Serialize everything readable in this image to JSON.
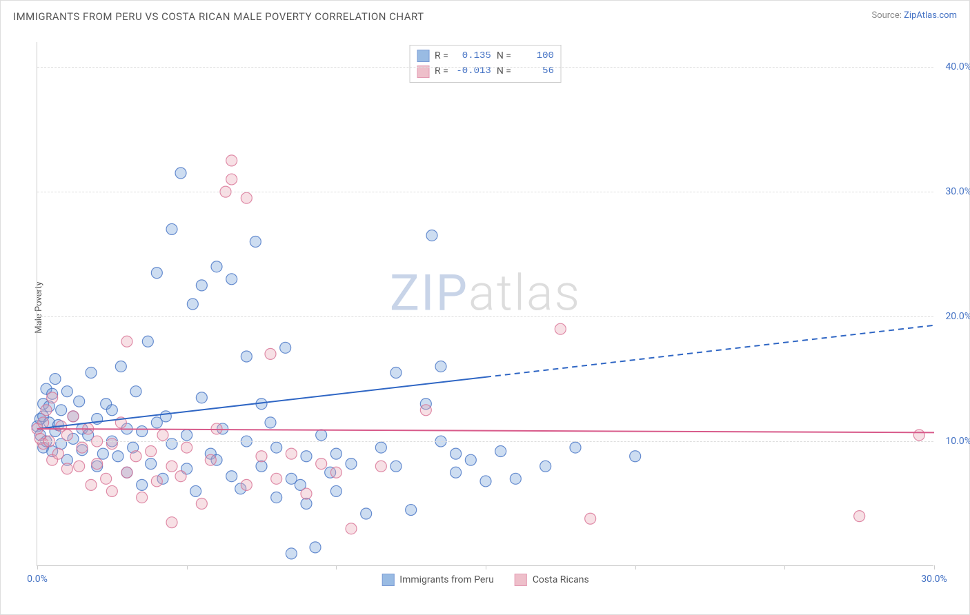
{
  "title": "IMMIGRANTS FROM PERU VS COSTA RICAN MALE POVERTY CORRELATION CHART",
  "source_label": "Source: ",
  "source_link": "ZipAtlas.com",
  "y_axis_label": "Male Poverty",
  "watermark_a": "ZIP",
  "watermark_b": "atlas",
  "chart": {
    "type": "scatter",
    "xlim": [
      0,
      30
    ],
    "ylim": [
      0,
      42
    ],
    "x_ticks": [
      0,
      5,
      10,
      15,
      20,
      25,
      30
    ],
    "x_tick_labels": [
      "0.0%",
      "",
      "",
      "",
      "",
      "",
      "30.0%"
    ],
    "y_ticks": [
      10,
      20,
      30,
      40
    ],
    "y_tick_labels": [
      "10.0%",
      "20.0%",
      "30.0%",
      "40.0%"
    ],
    "background_color": "#ffffff",
    "grid_color": "#dddddd",
    "marker_radius": 8,
    "marker_fill_opacity": 0.35,
    "marker_stroke_width": 1.2,
    "series": [
      {
        "name": "Immigrants from Peru",
        "color": "#6f9fd8",
        "stroke": "#4472c4",
        "R": "0.135",
        "N": "100",
        "trend": {
          "x1": 0,
          "y1": 11.0,
          "x2": 15,
          "y2": 15.2,
          "x3": 30,
          "y3": 19.3,
          "solid_until_x": 15,
          "color": "#2f66c4",
          "width": 2
        },
        "points": [
          [
            0.0,
            11.2
          ],
          [
            0.1,
            10.5
          ],
          [
            0.1,
            11.8
          ],
          [
            0.2,
            12.0
          ],
          [
            0.2,
            9.5
          ],
          [
            0.2,
            13.0
          ],
          [
            0.3,
            14.2
          ],
          [
            0.3,
            10.0
          ],
          [
            0.4,
            11.5
          ],
          [
            0.4,
            12.8
          ],
          [
            0.5,
            9.2
          ],
          [
            0.5,
            13.8
          ],
          [
            0.6,
            15.0
          ],
          [
            0.6,
            10.8
          ],
          [
            0.7,
            11.3
          ],
          [
            0.8,
            12.5
          ],
          [
            0.8,
            9.8
          ],
          [
            1.0,
            14.0
          ],
          [
            1.0,
            8.5
          ],
          [
            1.2,
            10.2
          ],
          [
            1.2,
            12.0
          ],
          [
            1.4,
            13.2
          ],
          [
            1.5,
            9.3
          ],
          [
            1.5,
            11.0
          ],
          [
            1.7,
            10.5
          ],
          [
            1.8,
            15.5
          ],
          [
            2.0,
            8.0
          ],
          [
            2.0,
            11.8
          ],
          [
            2.2,
            9.0
          ],
          [
            2.3,
            13.0
          ],
          [
            2.5,
            10.0
          ],
          [
            2.5,
            12.5
          ],
          [
            2.7,
            8.8
          ],
          [
            2.8,
            16.0
          ],
          [
            3.0,
            11.0
          ],
          [
            3.0,
            7.5
          ],
          [
            3.2,
            9.5
          ],
          [
            3.3,
            14.0
          ],
          [
            3.5,
            10.8
          ],
          [
            3.5,
            6.5
          ],
          [
            3.7,
            18.0
          ],
          [
            3.8,
            8.2
          ],
          [
            4.0,
            11.5
          ],
          [
            4.0,
            23.5
          ],
          [
            4.2,
            7.0
          ],
          [
            4.3,
            12.0
          ],
          [
            4.5,
            9.8
          ],
          [
            4.5,
            27.0
          ],
          [
            4.8,
            31.5
          ],
          [
            5.0,
            10.5
          ],
          [
            5.0,
            7.8
          ],
          [
            5.2,
            21.0
          ],
          [
            5.3,
            6.0
          ],
          [
            5.5,
            13.5
          ],
          [
            5.5,
            22.5
          ],
          [
            5.8,
            9.0
          ],
          [
            6.0,
            8.5
          ],
          [
            6.0,
            24.0
          ],
          [
            6.2,
            11.0
          ],
          [
            6.5,
            7.2
          ],
          [
            6.5,
            23.0
          ],
          [
            6.8,
            6.2
          ],
          [
            7.0,
            16.8
          ],
          [
            7.0,
            10.0
          ],
          [
            7.3,
            26.0
          ],
          [
            7.5,
            8.0
          ],
          [
            7.5,
            13.0
          ],
          [
            7.8,
            11.5
          ],
          [
            8.0,
            5.5
          ],
          [
            8.0,
            9.5
          ],
          [
            8.3,
            17.5
          ],
          [
            8.5,
            7.0
          ],
          [
            8.5,
            1.0
          ],
          [
            8.8,
            6.5
          ],
          [
            9.0,
            8.8
          ],
          [
            9.0,
            5.0
          ],
          [
            9.3,
            1.5
          ],
          [
            9.5,
            10.5
          ],
          [
            9.8,
            7.5
          ],
          [
            10.0,
            9.0
          ],
          [
            10.0,
            6.0
          ],
          [
            10.5,
            8.2
          ],
          [
            11.0,
            4.2
          ],
          [
            11.5,
            9.5
          ],
          [
            12.0,
            15.5
          ],
          [
            12.0,
            8.0
          ],
          [
            12.5,
            4.5
          ],
          [
            13.0,
            13.0
          ],
          [
            13.2,
            26.5
          ],
          [
            13.5,
            10.0
          ],
          [
            13.5,
            16.0
          ],
          [
            14.0,
            9.0
          ],
          [
            14.0,
            7.5
          ],
          [
            14.5,
            8.5
          ],
          [
            15.0,
            6.8
          ],
          [
            15.5,
            9.2
          ],
          [
            16.0,
            7.0
          ],
          [
            17.0,
            8.0
          ],
          [
            18.0,
            9.5
          ],
          [
            20.0,
            8.8
          ]
        ]
      },
      {
        "name": "Costa Ricans",
        "color": "#e8a5b5",
        "stroke": "#d87093",
        "R": "-0.013",
        "N": "56",
        "trend": {
          "x1": 0,
          "y1": 11.0,
          "x2": 30,
          "y2": 10.7,
          "solid_until_x": 30,
          "color": "#d85a8a",
          "width": 2
        },
        "points": [
          [
            0.0,
            11.0
          ],
          [
            0.1,
            10.2
          ],
          [
            0.2,
            11.5
          ],
          [
            0.2,
            9.8
          ],
          [
            0.3,
            12.5
          ],
          [
            0.4,
            10.0
          ],
          [
            0.5,
            8.5
          ],
          [
            0.5,
            13.5
          ],
          [
            0.7,
            9.0
          ],
          [
            0.8,
            11.2
          ],
          [
            1.0,
            10.5
          ],
          [
            1.0,
            7.8
          ],
          [
            1.2,
            12.0
          ],
          [
            1.4,
            8.0
          ],
          [
            1.5,
            9.5
          ],
          [
            1.7,
            11.0
          ],
          [
            1.8,
            6.5
          ],
          [
            2.0,
            10.0
          ],
          [
            2.0,
            8.2
          ],
          [
            2.3,
            7.0
          ],
          [
            2.5,
            9.8
          ],
          [
            2.5,
            6.0
          ],
          [
            2.8,
            11.5
          ],
          [
            3.0,
            7.5
          ],
          [
            3.0,
            18.0
          ],
          [
            3.3,
            8.8
          ],
          [
            3.5,
            5.5
          ],
          [
            3.8,
            9.2
          ],
          [
            4.0,
            6.8
          ],
          [
            4.2,
            10.5
          ],
          [
            4.5,
            8.0
          ],
          [
            4.5,
            3.5
          ],
          [
            4.8,
            7.2
          ],
          [
            5.0,
            9.5
          ],
          [
            5.5,
            5.0
          ],
          [
            5.8,
            8.5
          ],
          [
            6.0,
            11.0
          ],
          [
            6.3,
            30.0
          ],
          [
            6.5,
            32.5
          ],
          [
            6.5,
            31.0
          ],
          [
            7.0,
            6.5
          ],
          [
            7.0,
            29.5
          ],
          [
            7.5,
            8.8
          ],
          [
            7.8,
            17.0
          ],
          [
            8.0,
            7.0
          ],
          [
            8.5,
            9.0
          ],
          [
            9.0,
            5.8
          ],
          [
            9.5,
            8.2
          ],
          [
            10.0,
            7.5
          ],
          [
            10.5,
            3.0
          ],
          [
            11.5,
            8.0
          ],
          [
            13.0,
            12.5
          ],
          [
            17.5,
            19.0
          ],
          [
            18.5,
            3.8
          ],
          [
            27.5,
            4.0
          ],
          [
            29.5,
            10.5
          ]
        ]
      }
    ]
  },
  "legend_labels": {
    "R": "R =",
    "N": "N ="
  }
}
